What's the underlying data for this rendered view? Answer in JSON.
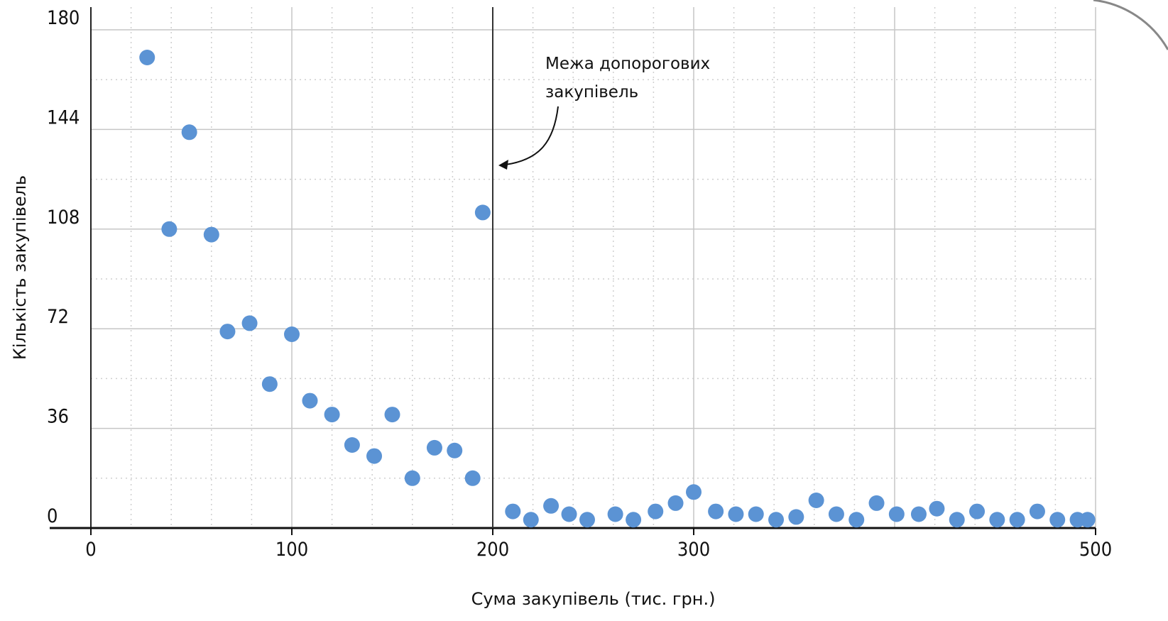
{
  "chart_data": {
    "type": "scatter",
    "title": "",
    "xlabel": "Сума закупівель (тис. грн.)",
    "ylabel": "Кількість закупівель",
    "xlim": [
      0,
      500
    ],
    "ylim": [
      0,
      180
    ],
    "x_ticks": [
      0,
      100,
      200,
      300,
      500
    ],
    "y_ticks": [
      0,
      36,
      72,
      108,
      144,
      180
    ],
    "grid": true,
    "point_color": "#5b93d4",
    "threshold_line": {
      "x": 200,
      "label": "Межа допорогових закупівель",
      "label_lines": [
        "Межа допорогових",
        "закупівель"
      ]
    },
    "series": [
      {
        "points": [
          [
            28,
            170
          ],
          [
            39,
            108
          ],
          [
            49,
            143
          ],
          [
            60,
            106
          ],
          [
            68,
            71
          ],
          [
            79,
            74
          ],
          [
            100,
            70
          ],
          [
            89,
            52
          ],
          [
            109,
            46
          ],
          [
            120,
            41
          ],
          [
            150,
            41
          ],
          [
            130,
            30
          ],
          [
            141,
            26
          ],
          [
            160,
            18
          ],
          [
            171,
            29
          ],
          [
            181,
            28
          ],
          [
            190,
            18
          ],
          [
            195,
            114
          ],
          [
            210,
            6
          ],
          [
            219,
            3
          ],
          [
            229,
            8
          ],
          [
            238,
            5
          ],
          [
            247,
            3
          ],
          [
            261,
            5
          ],
          [
            270,
            3
          ],
          [
            281,
            6
          ],
          [
            291,
            9
          ],
          [
            300,
            13
          ],
          [
            311,
            6
          ],
          [
            321,
            5
          ],
          [
            331,
            5
          ],
          [
            341,
            3
          ],
          [
            351,
            4
          ],
          [
            361,
            10
          ],
          [
            371,
            5
          ],
          [
            381,
            3
          ],
          [
            391,
            9
          ],
          [
            401,
            5
          ],
          [
            412,
            5
          ],
          [
            421,
            7
          ],
          [
            431,
            3
          ],
          [
            441,
            6
          ],
          [
            451,
            3
          ],
          [
            461,
            3
          ],
          [
            471,
            6
          ],
          [
            481,
            3
          ],
          [
            491,
            3
          ],
          [
            496,
            3
          ]
        ]
      }
    ]
  }
}
